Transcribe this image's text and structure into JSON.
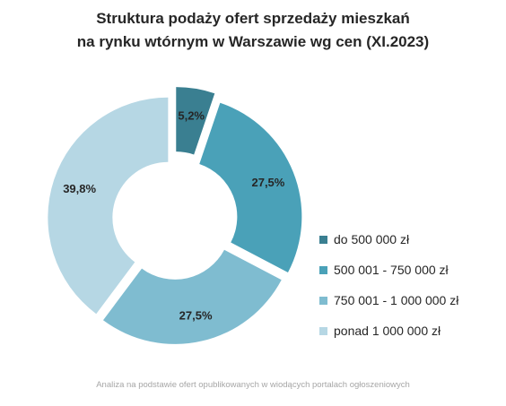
{
  "chart_data": {
    "type": "pie",
    "style": "donut, exploded slices",
    "title_lines": [
      "Struktura podaży ofert sprzedaży mieszkań",
      "na rynku wtórnym w Warszawie wg cen (XI.2023)"
    ],
    "categories": [
      "do 500 000 zł",
      "500 001 - 750 000 zł",
      "750 001 - 1 000 000 zł",
      "ponad 1 000 000 zł"
    ],
    "values": [
      5.2,
      27.5,
      27.5,
      39.8
    ],
    "value_labels": [
      "5,2%",
      "27,5%",
      "27,5%",
      "39,8%"
    ],
    "colors": [
      "#3a7f91",
      "#4aa1b8",
      "#7fbcd0",
      "#b6d7e4"
    ],
    "legend_position": "right"
  },
  "footnote": "Analiza na podstawie ofert opublikowanych w wiodących portalach ogłoszeniowych"
}
